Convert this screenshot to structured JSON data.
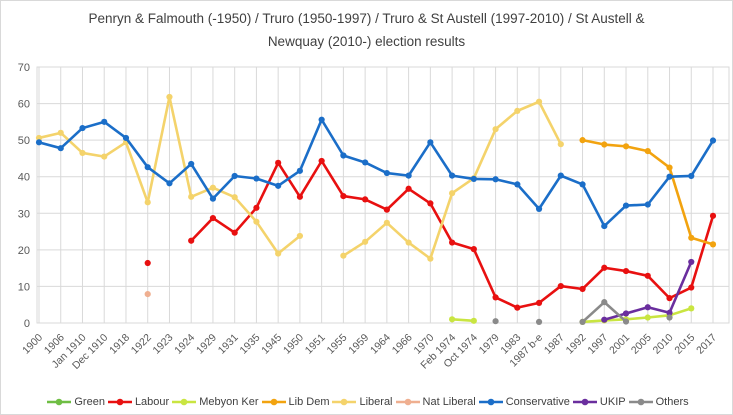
{
  "title": "Penryn & Falmouth (-1950) / Truro (1950-1997) / Truro & St Austell (1997-2010) / St Austell & Newquay (2010-) election results",
  "colors": {
    "title_text": "#404040",
    "axis_text": "#595959",
    "gridline": "#d9d9d9"
  },
  "chart_data": {
    "type": "line",
    "title": "Penryn & Falmouth (-1950) / Truro (1950-1997) / Truro & St Austell (1997-2010) / St Austell & Newquay (2010-) election results",
    "xlabel": "",
    "ylabel": "",
    "ylim": [
      0,
      70
    ],
    "yticks": [
      0,
      10,
      20,
      30,
      40,
      50,
      60,
      70
    ],
    "grid": true,
    "legend_position": "bottom",
    "categories": [
      "1900",
      "1906",
      "Jan 1910",
      "Dec 1910",
      "1918",
      "1922",
      "1923",
      "1924",
      "1929",
      "1931",
      "1935",
      "1945",
      "1950",
      "1951",
      "1955",
      "1959",
      "1964",
      "1966",
      "1970",
      "Feb 1974",
      "Oct 1974",
      "1979",
      "1983",
      "1987 b-e",
      "1987",
      "1992",
      "1997",
      "2001",
      "2005",
      "2010",
      "2015",
      "2017"
    ],
    "series": [
      {
        "name": "Green",
        "color": "#6fbe44",
        "values": [
          null,
          null,
          null,
          null,
          null,
          null,
          null,
          null,
          null,
          null,
          null,
          null,
          null,
          null,
          null,
          null,
          null,
          null,
          null,
          null,
          null,
          null,
          null,
          null,
          null,
          null,
          null,
          null,
          null,
          null,
          null,
          null
        ]
      },
      {
        "name": "Labour",
        "color": "#e81010",
        "values": [
          null,
          null,
          null,
          null,
          null,
          16.4,
          null,
          22.5,
          28.7,
          24.7,
          31.5,
          43.8,
          34.5,
          44.3,
          34.7,
          33.8,
          31.0,
          36.7,
          32.7,
          22.0,
          20.2,
          7.0,
          4.2,
          5.5,
          10.1,
          9.3,
          15.1,
          14.2,
          12.9,
          6.8,
          9.7,
          29.3
        ]
      },
      {
        "name": "Mebyon Ker",
        "color": "#c9e541",
        "values": [
          null,
          null,
          null,
          null,
          null,
          null,
          null,
          null,
          null,
          null,
          null,
          null,
          null,
          null,
          null,
          null,
          null,
          null,
          null,
          1.0,
          0.6,
          null,
          null,
          null,
          null,
          0.3,
          0.7,
          1.0,
          1.5,
          2.1,
          4.0,
          null
        ]
      },
      {
        "name": "Lib Dem",
        "color": "#f2a30f",
        "values": [
          null,
          null,
          null,
          null,
          null,
          null,
          null,
          null,
          null,
          null,
          null,
          null,
          null,
          null,
          null,
          null,
          null,
          null,
          null,
          null,
          null,
          null,
          null,
          null,
          null,
          50.0,
          48.8,
          48.3,
          47.0,
          42.5,
          23.3,
          21.5
        ]
      },
      {
        "name": "Liberal",
        "color": "#f4d36b",
        "values": [
          50.6,
          52.0,
          46.5,
          45.5,
          49.4,
          33.0,
          61.8,
          34.5,
          37.0,
          34.4,
          27.7,
          19.0,
          23.8,
          null,
          18.4,
          22.2,
          27.4,
          22.0,
          17.6,
          35.5,
          39.6,
          53.0,
          58.0,
          60.5,
          48.9,
          null,
          null,
          null,
          null,
          null,
          null,
          null
        ]
      },
      {
        "name": "Nat Liberal",
        "color": "#efaf90",
        "values": [
          null,
          null,
          null,
          null,
          null,
          7.9,
          null,
          null,
          null,
          null,
          null,
          null,
          null,
          null,
          null,
          null,
          null,
          null,
          null,
          null,
          null,
          null,
          null,
          null,
          null,
          null,
          null,
          null,
          null,
          null,
          null,
          null
        ]
      },
      {
        "name": "Conservative",
        "color": "#1b6ec8",
        "values": [
          49.4,
          47.8,
          53.3,
          55.0,
          50.6,
          42.6,
          38.2,
          43.5,
          34.0,
          40.2,
          39.5,
          37.5,
          41.6,
          55.6,
          45.8,
          43.9,
          41.0,
          40.3,
          49.4,
          40.3,
          39.4,
          39.3,
          37.9,
          31.2,
          40.3,
          37.9,
          26.5,
          32.1,
          32.4,
          40.0,
          40.2,
          49.9
        ]
      },
      {
        "name": "UKIP",
        "color": "#6a2e9e",
        "values": [
          null,
          null,
          null,
          null,
          null,
          null,
          null,
          null,
          null,
          null,
          null,
          null,
          null,
          null,
          null,
          null,
          null,
          null,
          null,
          null,
          null,
          null,
          null,
          null,
          null,
          null,
          0.9,
          2.6,
          4.3,
          2.8,
          16.7,
          null
        ]
      },
      {
        "name": "Others",
        "color": "#8a8a8a",
        "values": [
          null,
          null,
          null,
          null,
          null,
          null,
          null,
          null,
          null,
          null,
          null,
          null,
          null,
          null,
          null,
          null,
          null,
          null,
          null,
          null,
          null,
          0.5,
          null,
          0.3,
          null,
          0.3,
          5.7,
          0.4,
          null,
          1.5,
          null,
          null
        ]
      }
    ]
  }
}
